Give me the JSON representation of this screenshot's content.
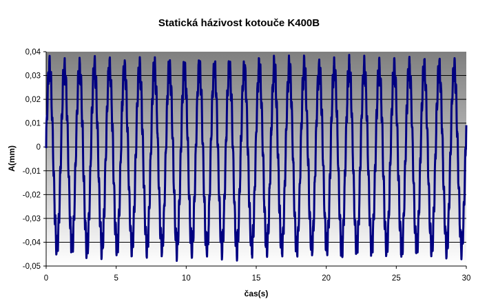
{
  "chart_data": {
    "type": "line",
    "title": "Statická házivost kotouče K400B",
    "xlabel": "čas(s)",
    "ylabel": "A(mm)",
    "xlim": [
      0,
      30
    ],
    "ylim": [
      -0.05,
      0.04
    ],
    "x_ticks": [
      "0",
      "5",
      "10",
      "15",
      "20",
      "25",
      "30"
    ],
    "y_ticks": [
      "0,04",
      "0,03",
      "0,02",
      "0,01",
      "0",
      "-0,01",
      "-0,02",
      "-0,03",
      "-0,04",
      "-0,05"
    ],
    "grid": true,
    "legend": "none",
    "background": "vertical gradient, dark gray at top to white at bottom",
    "series": [
      {
        "name": "",
        "color": "#000080",
        "waveform": {
          "shape": "sinusoid",
          "cycles": 28,
          "period_s": 1.07,
          "amplitude_min": -0.042,
          "amplitude_max": 0.033,
          "start_value": 0.001
        }
      }
    ]
  }
}
